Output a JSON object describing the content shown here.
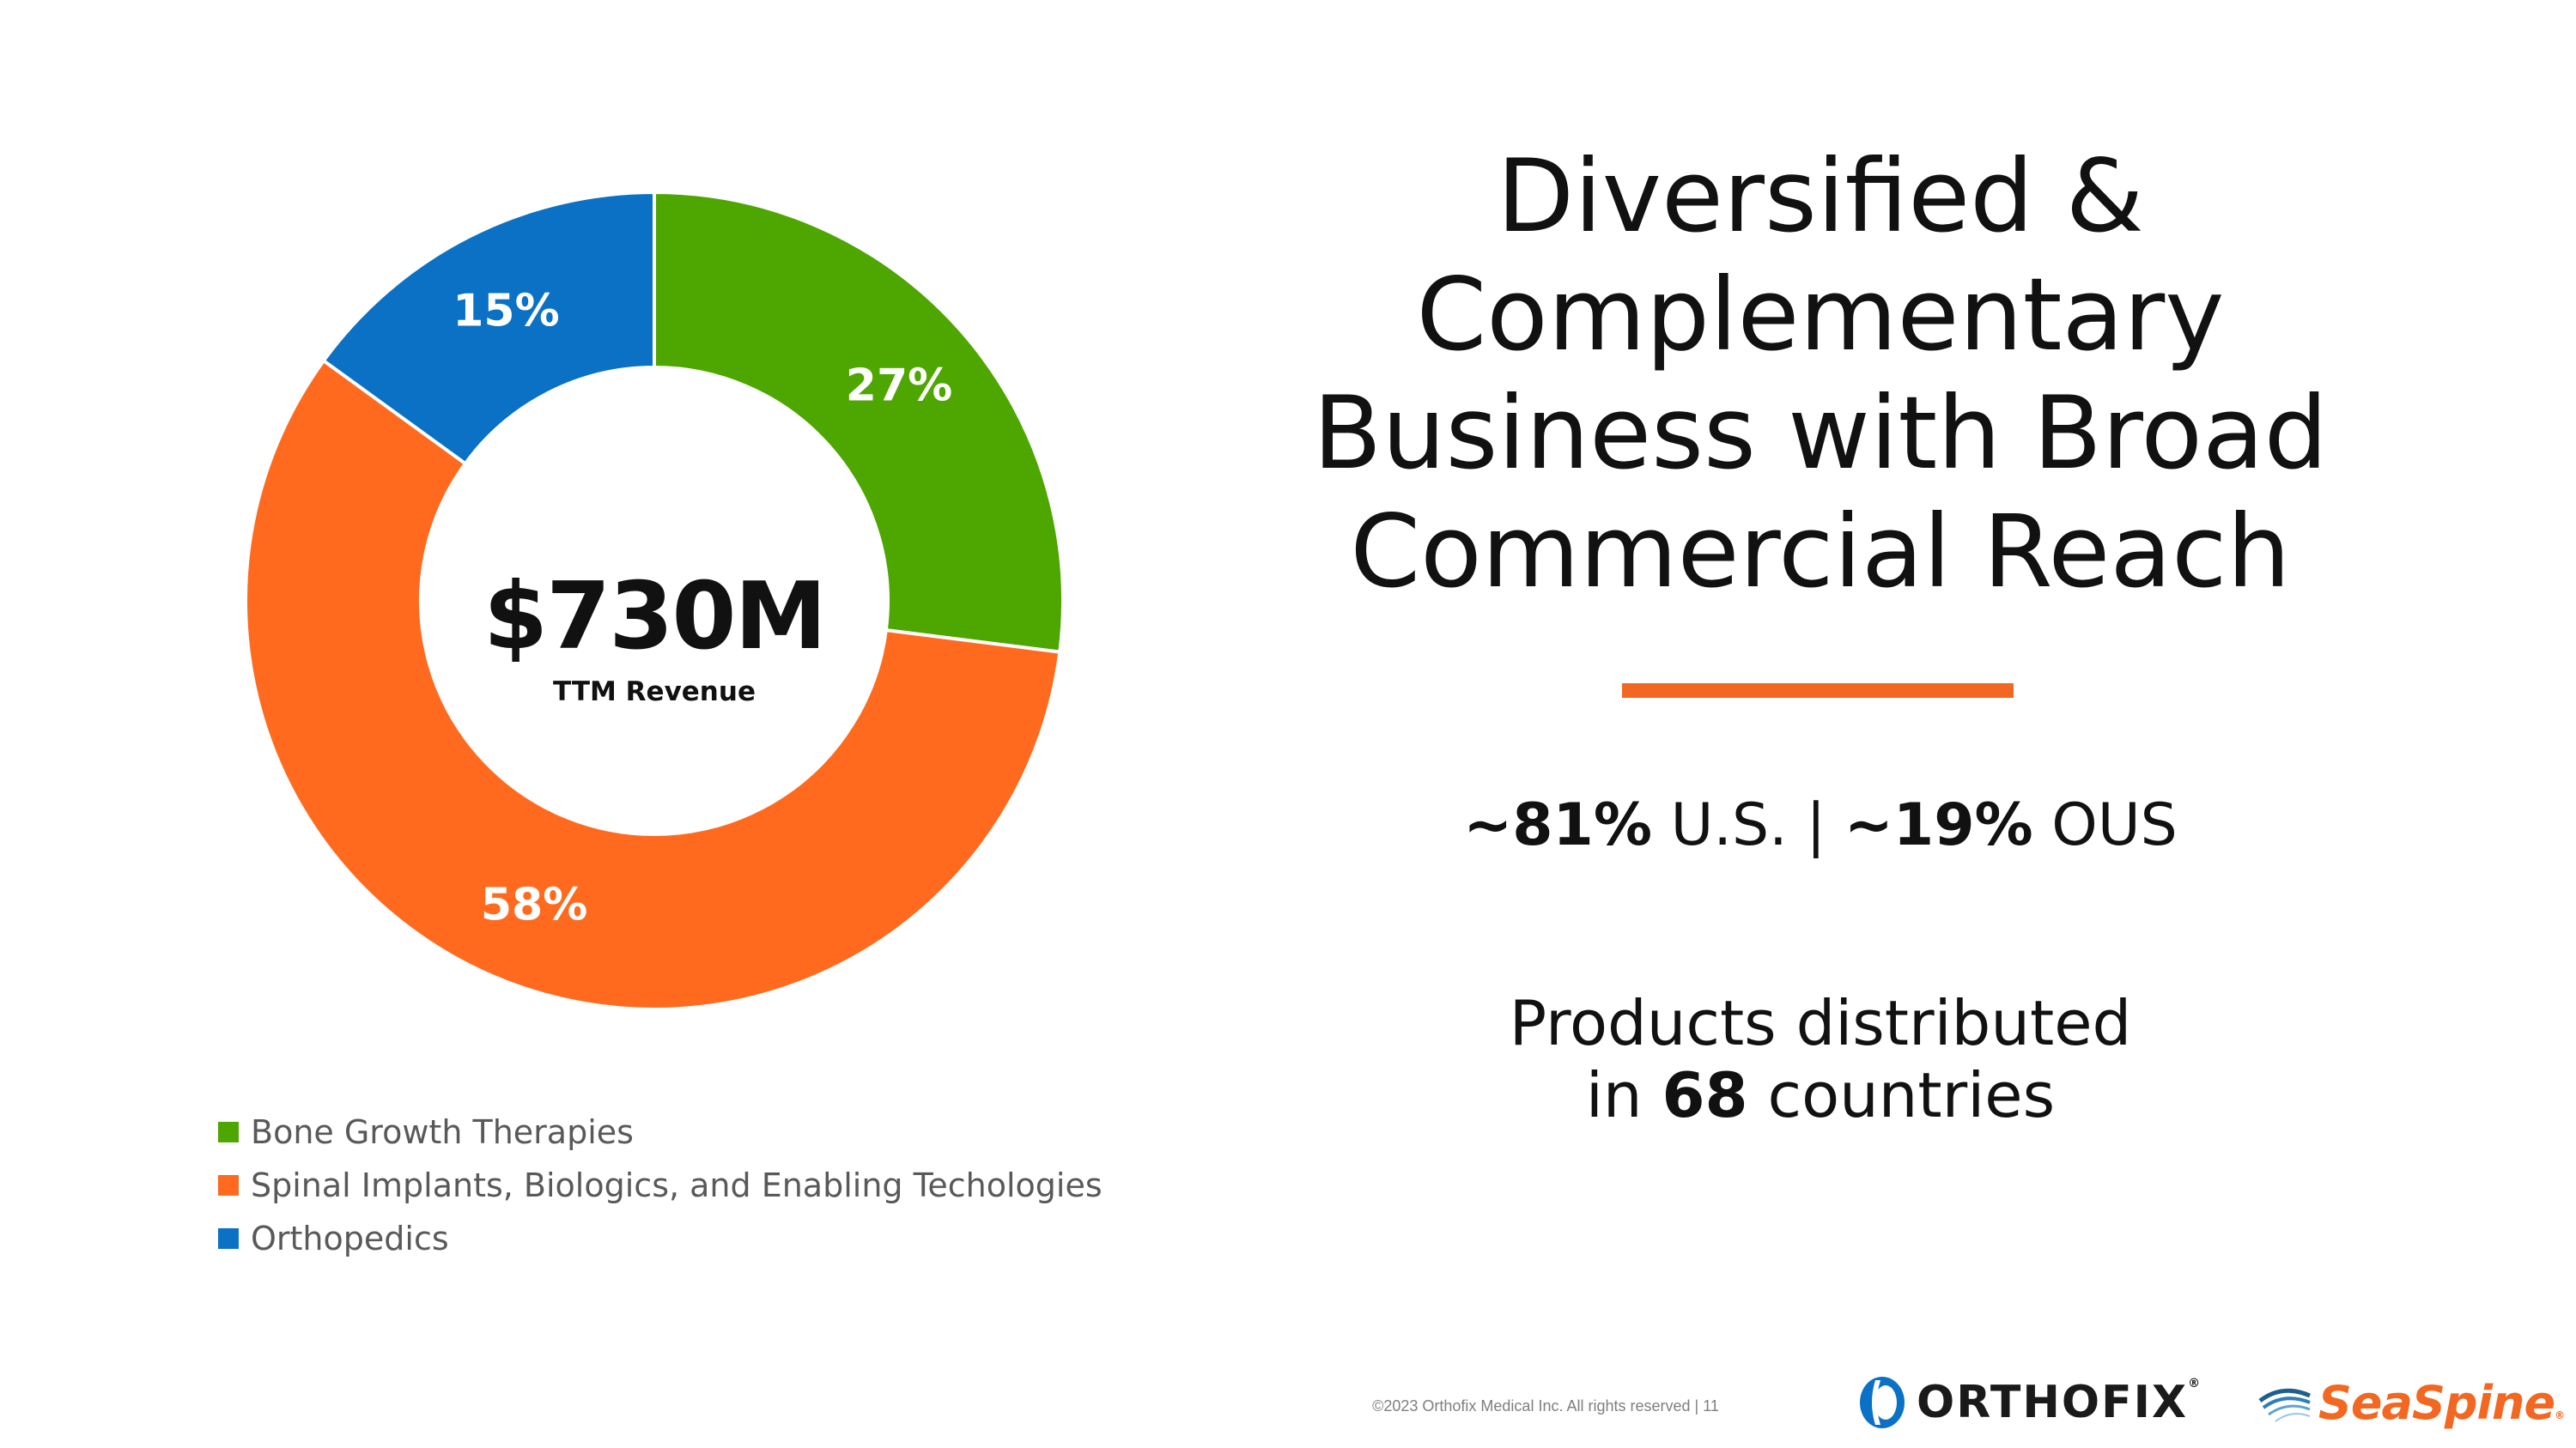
{
  "chart_data": {
    "type": "pie",
    "variant": "donut",
    "categories": [
      "Bone Growth Therapies",
      "Spinal Implants, Biologics, and Enabling Techologies",
      "Orthopedics"
    ],
    "values": [
      27,
      58,
      15
    ],
    "value_labels": [
      "27%",
      "58%",
      "15%"
    ],
    "colors": [
      "#4ea600",
      "#ff6a1f",
      "#0a71c5"
    ],
    "center_value": "$730M",
    "center_label": "TTM Revenue",
    "legend_position": "bottom-left"
  },
  "title": {
    "lines": [
      "Diversified &",
      "Complementary",
      "Business with Broad",
      "Commercial Reach"
    ]
  },
  "accent_color": "#f26822",
  "stats": {
    "us_pct": "~81%",
    "us_label": "U.S. |",
    "ous_pct": "~19%",
    "ous_label": "OUS"
  },
  "products": {
    "line1": "Products distributed",
    "line2_prefix": "in",
    "count": "68",
    "line2_suffix": "countries"
  },
  "footer": "©2023 Orthofix Medical Inc. All rights reserved  |  11",
  "logos": {
    "orthofix": {
      "text": "ORTHOFIX",
      "reg": "®"
    },
    "seaspine": {
      "text": "SeaSpine",
      "reg": "®"
    }
  }
}
